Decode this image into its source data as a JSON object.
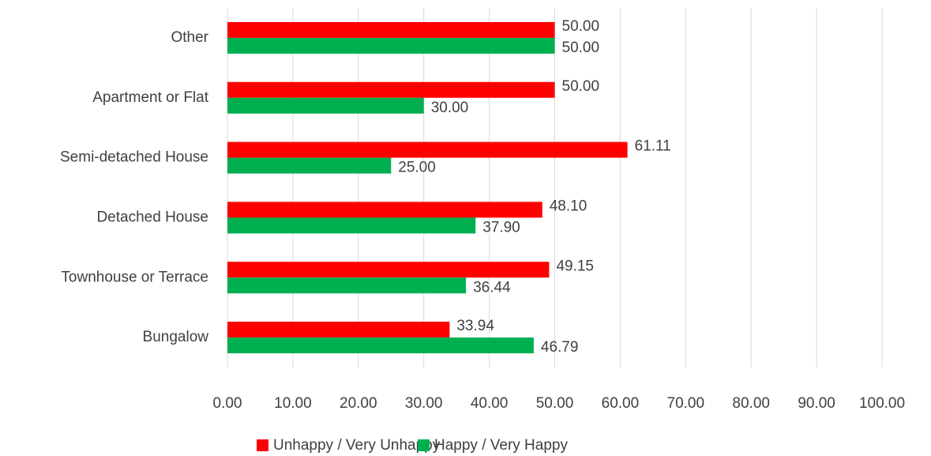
{
  "chart_data": {
    "type": "bar",
    "orientation": "horizontal",
    "categories": [
      "Other",
      "Apartment or Flat",
      "Semi-detached House",
      "Detached House",
      "Townhouse or Terrace",
      "Bungalow"
    ],
    "series": [
      {
        "name": "Unhappy / Very Unhappy",
        "color": "#ff0000",
        "values": [
          50,
          50,
          61.11,
          48.1,
          49.15,
          33.94
        ],
        "value_labels": [
          "50.00",
          "50.00",
          "61.11",
          "48.10",
          "49.15",
          "33.94"
        ]
      },
      {
        "name": "Happy / Very Happy",
        "color": "#00b050",
        "values": [
          50,
          30,
          25,
          37.9,
          36.44,
          46.79
        ],
        "value_labels": [
          "50.00",
          "30.00",
          "25.00",
          "37.90",
          "36.44",
          "46.79"
        ]
      }
    ],
    "xlim": [
      0,
      100
    ],
    "xticks": [
      {
        "value": 0,
        "label": "0.00"
      },
      {
        "value": 10,
        "label": "10.00"
      },
      {
        "value": 20,
        "label": "20.00"
      },
      {
        "value": 30,
        "label": "30.00"
      },
      {
        "value": 40,
        "label": "40.00"
      },
      {
        "value": 50,
        "label": "50.00"
      },
      {
        "value": 60,
        "label": "60.00"
      },
      {
        "value": 70,
        "label": "70.00"
      },
      {
        "value": 80,
        "label": "80.00"
      },
      {
        "value": 90,
        "label": "90.00"
      },
      {
        "value": 100,
        "label": "100.00"
      }
    ],
    "grid": true,
    "legend": "bottom"
  }
}
